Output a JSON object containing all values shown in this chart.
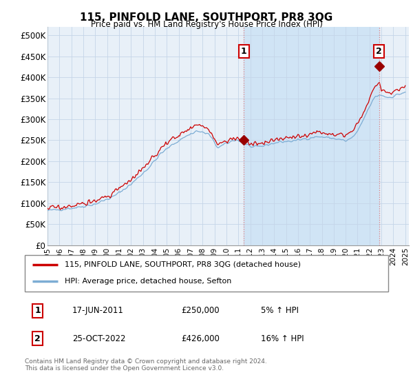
{
  "title": "115, PINFOLD LANE, SOUTHPORT, PR8 3QG",
  "subtitle": "Price paid vs. HM Land Registry's House Price Index (HPI)",
  "bg_color": "#e8f0f8",
  "red_line_label": "115, PINFOLD LANE, SOUTHPORT, PR8 3QG (detached house)",
  "blue_line_label": "HPI: Average price, detached house, Sefton",
  "transaction1_date": "17-JUN-2011",
  "transaction1_price": "£250,000",
  "transaction1_hpi": "5% ↑ HPI",
  "transaction2_date": "25-OCT-2022",
  "transaction2_price": "£426,000",
  "transaction2_hpi": "16% ↑ HPI",
  "footer": "Contains HM Land Registry data © Crown copyright and database right 2024.\nThis data is licensed under the Open Government Licence v3.0.",
  "ylim": [
    0,
    520000
  ],
  "yticks": [
    0,
    50000,
    100000,
    150000,
    200000,
    250000,
    300000,
    350000,
    400000,
    450000,
    500000
  ],
  "start_year": 1995,
  "end_year": 2025,
  "transaction1_value": 250000,
  "transaction2_value": 426000,
  "t1_year": 2011.458,
  "t2_year": 2022.792,
  "red_line_color": "#cc0000",
  "blue_line_color": "#7dadd4",
  "shade_color": "#d0e4f5",
  "grid_color": "#c5d5e8",
  "vline_color": "#e08080",
  "marker_color": "#990000"
}
